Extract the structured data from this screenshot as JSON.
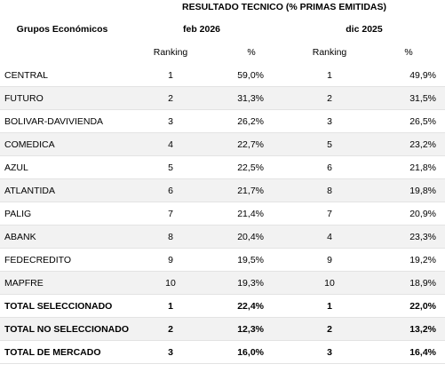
{
  "header": {
    "title": "RESULTADO TECNICO (% PRIMAS EMITIDAS)"
  },
  "table": {
    "group_header": "Grupos Económicos",
    "periods": [
      "feb 2026",
      "dic 2025"
    ],
    "subheaders": [
      "Ranking",
      "%",
      "Ranking",
      "%"
    ],
    "rows": [
      [
        "CENTRAL",
        "1",
        "59,0%",
        "1",
        "49,9%"
      ],
      [
        "FUTURO",
        "2",
        "31,3%",
        "2",
        "31,5%"
      ],
      [
        "BOLIVAR-DAVIVIENDA",
        "3",
        "26,2%",
        "3",
        "26,5%"
      ],
      [
        "COMEDICA",
        "4",
        "22,7%",
        "5",
        "23,2%"
      ],
      [
        "AZUL",
        "5",
        "22,5%",
        "6",
        "21,8%"
      ],
      [
        "ATLANTIDA",
        "6",
        "21,7%",
        "8",
        "19,8%"
      ],
      [
        "PALIG",
        "7",
        "21,4%",
        "7",
        "20,9%"
      ],
      [
        "ABANK",
        "8",
        "20,4%",
        "4",
        "23,3%"
      ],
      [
        "FEDECREDITO",
        "9",
        "19,5%",
        "9",
        "19,2%"
      ],
      [
        "MAPFRE",
        "10",
        "19,3%",
        "10",
        "18,9%"
      ]
    ],
    "totals": [
      [
        "TOTAL SELECCIONADO",
        "1",
        "22,4%",
        "1",
        "22,0%"
      ],
      [
        "TOTAL NO SELECCIONADO",
        "2",
        "12,3%",
        "2",
        "13,2%"
      ],
      [
        "TOTAL DE MERCADO",
        "3",
        "16,0%",
        "3",
        "16,4%"
      ]
    ]
  }
}
